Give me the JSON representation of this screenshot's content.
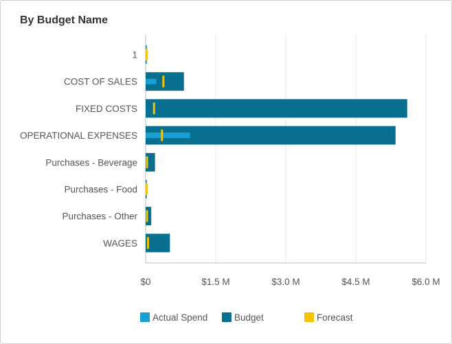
{
  "card": {
    "title": "By Budget Name"
  },
  "colors": {
    "actual": "#1a9fd4",
    "budget": "#086f8e",
    "forecast": "#f5c400",
    "grid": "#e6e6e6",
    "axis": "#bdbdbd"
  },
  "chart_data": {
    "type": "bar",
    "orientation": "horizontal",
    "title": "By Budget Name",
    "categories": [
      "1",
      "COST OF SALES",
      "FIXED COSTS",
      "OPERATIONAL EXPENSES",
      "Purchases - Beverage",
      "Purchases - Food",
      "Purchases - Other",
      "WAGES"
    ],
    "series": [
      {
        "name": "Actual Spend",
        "values": [
          0.005,
          0.23,
          0.0,
          0.95,
          0.0,
          0.0,
          0.0,
          0.0
        ]
      },
      {
        "name": "Budget",
        "values": [
          0.02,
          0.82,
          5.6,
          5.35,
          0.2,
          0.02,
          0.12,
          0.52
        ]
      },
      {
        "name": "Forecast",
        "values": [
          0.02,
          0.38,
          0.18,
          0.35,
          0.03,
          0.02,
          0.03,
          0.05
        ]
      }
    ],
    "xlim": [
      0,
      6.0
    ],
    "xticks": [
      0,
      1.5,
      3.0,
      4.5,
      6.0
    ],
    "xtick_labels": [
      "$0",
      "$1.5 M",
      "$3.0 M",
      "$4.5 M",
      "$6.0 M"
    ],
    "grid": true,
    "legend_position": "bottom"
  }
}
